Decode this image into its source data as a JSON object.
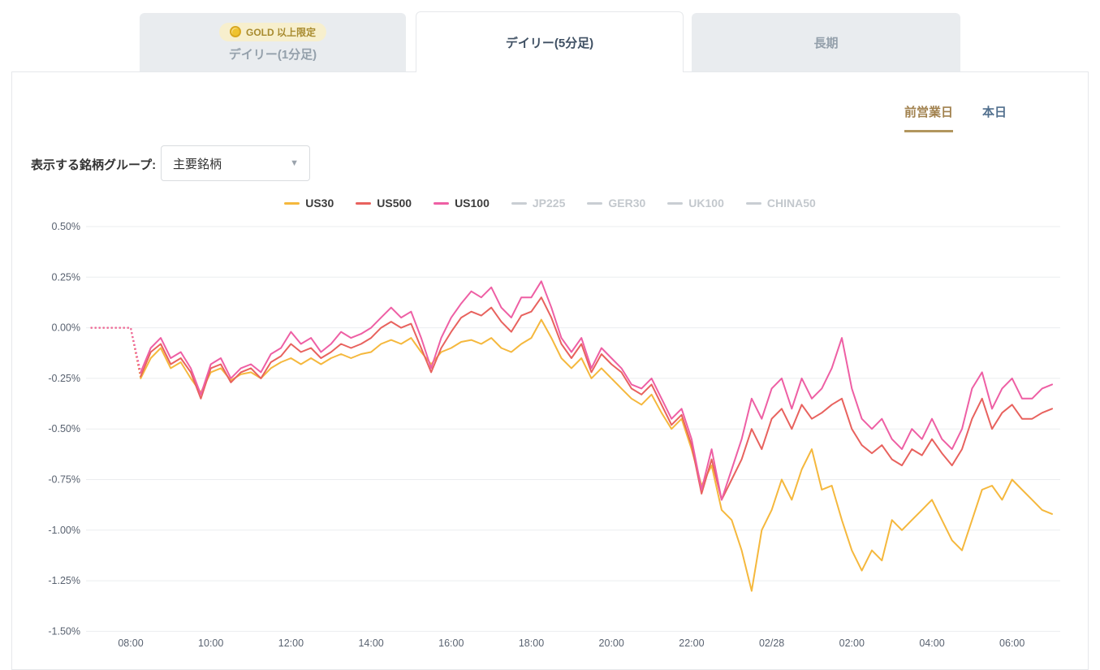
{
  "tabs": [
    {
      "label": "デイリー(1分足)",
      "badge": "GOLD 以上限定",
      "active": false
    },
    {
      "label": "デイリー(5分足)",
      "active": true
    },
    {
      "label": "長期",
      "active": false
    }
  ],
  "period": {
    "prev_label": "前営業日",
    "today_label": "本日"
  },
  "selector": {
    "label": "表示する銘柄グループ:",
    "value": "主要銘柄"
  },
  "legend": [
    {
      "name": "US30",
      "color": "#f5b83d",
      "enabled": true
    },
    {
      "name": "US500",
      "color": "#e8625e",
      "enabled": true
    },
    {
      "name": "US100",
      "color": "#ee5fa4",
      "enabled": true
    },
    {
      "name": "JP225",
      "color": "#c9ced3",
      "enabled": false
    },
    {
      "name": "GER30",
      "color": "#c9ced3",
      "enabled": false
    },
    {
      "name": "UK100",
      "color": "#c9ced3",
      "enabled": false
    },
    {
      "name": "CHINA50",
      "color": "#c9ced3",
      "enabled": false
    }
  ],
  "colors": {
    "grid": "#ebedef",
    "axis_text": "#596270",
    "accent_gold": "#a1814e"
  },
  "chart_data": {
    "type": "line",
    "title": "",
    "xlabel": "",
    "ylabel": "",
    "ylim": [
      -1.5,
      0.5
    ],
    "y_ticks": [
      "0.50%",
      "0.25%",
      "0.00%",
      "-0.25%",
      "-0.50%",
      "-0.75%",
      "-1.00%",
      "-1.25%",
      "-1.50%"
    ],
    "x_ticks": [
      "08:00",
      "10:00",
      "12:00",
      "14:00",
      "16:00",
      "18:00",
      "20:00",
      "22:00",
      "02/28",
      "02:00",
      "04:00",
      "06:00"
    ],
    "tick_hours": [
      8,
      10,
      12,
      14,
      16,
      18,
      20,
      22,
      24,
      26,
      28,
      30
    ],
    "x_start_hour": 7,
    "x_step_minutes": 15,
    "grid": true,
    "legend_position": "top-center",
    "disabled_series": [
      "JP225",
      "GER30",
      "UK100",
      "CHINA50"
    ],
    "series": [
      {
        "name": "US30",
        "color": "#f5b83d",
        "values": [
          0,
          0,
          0,
          0,
          0,
          -0.25,
          -0.15,
          -0.1,
          -0.2,
          -0.17,
          -0.25,
          -0.32,
          -0.22,
          -0.2,
          -0.26,
          -0.23,
          -0.22,
          -0.25,
          -0.2,
          -0.17,
          -0.15,
          -0.18,
          -0.15,
          -0.18,
          -0.15,
          -0.13,
          -0.15,
          -0.13,
          -0.12,
          -0.08,
          -0.06,
          -0.08,
          -0.05,
          -0.12,
          -0.18,
          -0.12,
          -0.1,
          -0.07,
          -0.06,
          -0.08,
          -0.05,
          -0.1,
          -0.12,
          -0.08,
          -0.05,
          0.04,
          -0.05,
          -0.15,
          -0.2,
          -0.15,
          -0.25,
          -0.2,
          -0.25,
          -0.3,
          -0.35,
          -0.38,
          -0.33,
          -0.42,
          -0.5,
          -0.45,
          -0.6,
          -0.78,
          -0.68,
          -0.9,
          -0.95,
          -1.1,
          -1.3,
          -1.0,
          -0.9,
          -0.75,
          -0.85,
          -0.7,
          -0.6,
          -0.8,
          -0.78,
          -0.95,
          -1.1,
          -1.2,
          -1.1,
          -1.15,
          -0.95,
          -1.0,
          -0.95,
          -0.9,
          -0.85,
          -0.95,
          -1.05,
          -1.1,
          -0.95,
          -0.8,
          -0.78,
          -0.85,
          -0.75,
          -0.8,
          -0.85,
          -0.9,
          -0.92
        ]
      },
      {
        "name": "US500",
        "color": "#e8625e",
        "values": [
          0,
          0,
          0,
          0,
          0,
          -0.24,
          -0.12,
          -0.08,
          -0.18,
          -0.15,
          -0.22,
          -0.35,
          -0.2,
          -0.18,
          -0.27,
          -0.22,
          -0.2,
          -0.25,
          -0.17,
          -0.14,
          -0.08,
          -0.12,
          -0.1,
          -0.15,
          -0.12,
          -0.08,
          -0.1,
          -0.08,
          -0.05,
          0.0,
          0.03,
          0.0,
          0.02,
          -0.1,
          -0.22,
          -0.1,
          -0.02,
          0.05,
          0.08,
          0.06,
          0.1,
          0.03,
          -0.02,
          0.06,
          0.08,
          0.15,
          0.05,
          -0.08,
          -0.15,
          -0.08,
          -0.22,
          -0.13,
          -0.18,
          -0.22,
          -0.3,
          -0.33,
          -0.28,
          -0.38,
          -0.48,
          -0.43,
          -0.58,
          -0.82,
          -0.65,
          -0.85,
          -0.75,
          -0.65,
          -0.5,
          -0.6,
          -0.45,
          -0.4,
          -0.5,
          -0.38,
          -0.45,
          -0.42,
          -0.38,
          -0.35,
          -0.5,
          -0.58,
          -0.62,
          -0.58,
          -0.65,
          -0.68,
          -0.6,
          -0.63,
          -0.55,
          -0.62,
          -0.68,
          -0.6,
          -0.45,
          -0.35,
          -0.5,
          -0.42,
          -0.38,
          -0.45,
          -0.45,
          -0.42,
          -0.4
        ]
      },
      {
        "name": "US100",
        "color": "#ee5fa4",
        "values": [
          0,
          0,
          0,
          0,
          0,
          -0.22,
          -0.1,
          -0.05,
          -0.15,
          -0.12,
          -0.2,
          -0.33,
          -0.18,
          -0.15,
          -0.25,
          -0.2,
          -0.18,
          -0.22,
          -0.13,
          -0.1,
          -0.02,
          -0.08,
          -0.05,
          -0.12,
          -0.08,
          -0.02,
          -0.05,
          -0.03,
          0.0,
          0.05,
          0.1,
          0.05,
          0.08,
          -0.05,
          -0.2,
          -0.05,
          0.05,
          0.12,
          0.18,
          0.15,
          0.2,
          0.1,
          0.05,
          0.15,
          0.15,
          0.23,
          0.1,
          -0.05,
          -0.12,
          -0.05,
          -0.2,
          -0.1,
          -0.15,
          -0.2,
          -0.28,
          -0.3,
          -0.25,
          -0.35,
          -0.45,
          -0.4,
          -0.55,
          -0.8,
          -0.6,
          -0.85,
          -0.7,
          -0.55,
          -0.35,
          -0.45,
          -0.3,
          -0.25,
          -0.4,
          -0.25,
          -0.35,
          -0.3,
          -0.2,
          -0.05,
          -0.3,
          -0.45,
          -0.5,
          -0.45,
          -0.55,
          -0.6,
          -0.5,
          -0.55,
          -0.45,
          -0.55,
          -0.6,
          -0.5,
          -0.3,
          -0.22,
          -0.4,
          -0.3,
          -0.25,
          -0.35,
          -0.35,
          -0.3,
          -0.28
        ]
      }
    ]
  }
}
